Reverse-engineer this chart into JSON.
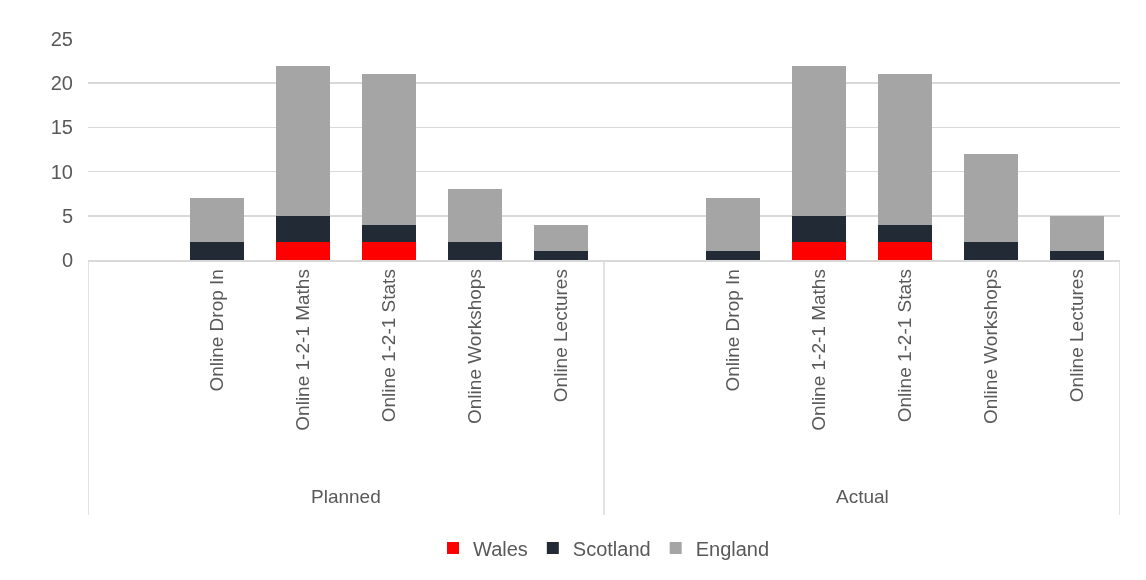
{
  "chart_data": {
    "type": "bar",
    "stacked": true,
    "categories": [
      null,
      "Online Drop In",
      "Online 1-2-1 Maths",
      "Online 1-2-1 Stats",
      "Online Workshops",
      "Online Lectures",
      null,
      "Online Drop In",
      "Online 1-2-1 Maths",
      "Online 1-2-1 Stats",
      "Online Workshops",
      "Online Lectures"
    ],
    "series": [
      {
        "name": "Wales",
        "color": "#ff0000",
        "values": [
          null,
          null,
          2,
          2,
          null,
          null,
          null,
          null,
          2,
          2,
          null,
          null
        ]
      },
      {
        "name": "Scotland",
        "color": "#222a35",
        "values": [
          null,
          2,
          3,
          2,
          2,
          1,
          null,
          1,
          3,
          2,
          2,
          1
        ]
      },
      {
        "name": "England",
        "color": "#a5a5a5",
        "values": [
          null,
          5,
          17,
          17,
          6,
          3,
          null,
          6,
          17,
          17,
          10,
          4
        ]
      }
    ],
    "ylim": [
      0,
      25
    ],
    "yticks": [
      0,
      5,
      10,
      15,
      20,
      25
    ],
    "grid": "y",
    "legend": "bottom",
    "annotations": [
      "Planned",
      "Actual"
    ]
  }
}
